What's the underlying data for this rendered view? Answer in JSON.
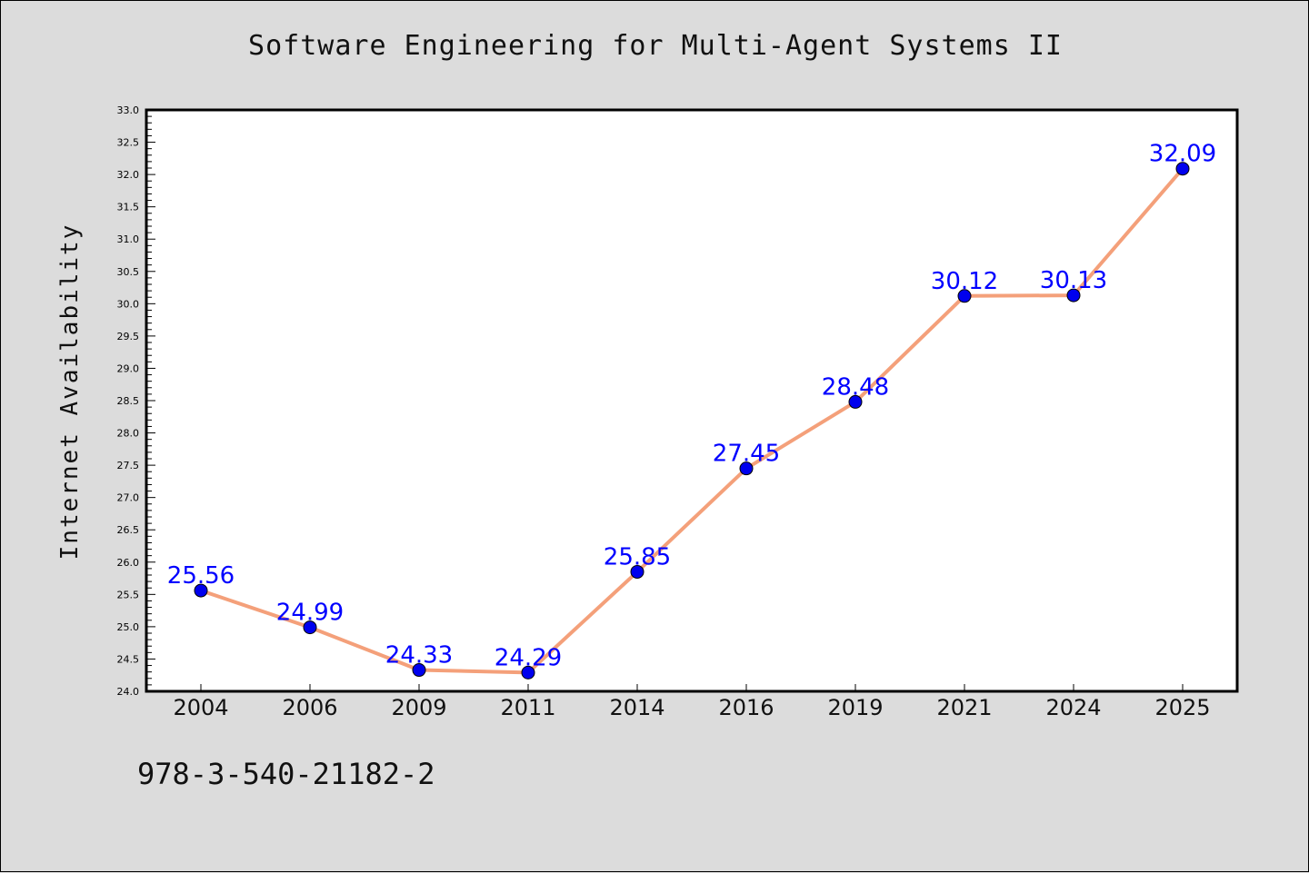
{
  "chart_data": {
    "type": "line",
    "title": "Software Engineering for Multi-Agent Systems II",
    "xlabel": "",
    "ylabel": "Internet Availability",
    "categories": [
      "2004",
      "2006",
      "2009",
      "2011",
      "2014",
      "2016",
      "2019",
      "2021",
      "2024",
      "2025"
    ],
    "values": [
      25.56,
      24.99,
      24.33,
      24.29,
      25.85,
      27.45,
      28.48,
      30.12,
      30.13,
      32.09
    ],
    "data_labels": [
      "25.56",
      "24.99",
      "24.33",
      "24.29",
      "25.85",
      "27.45",
      "28.48",
      "30.12",
      "30.13",
      "32.09"
    ],
    "ylim": [
      24.0,
      33.0
    ],
    "yticks": [
      "24.0",
      "24.5",
      "25.0",
      "25.5",
      "26.0",
      "26.5",
      "27.0",
      "27.5",
      "28.0",
      "28.5",
      "29.0",
      "29.5",
      "30.0",
      "30.5",
      "31.0",
      "31.5",
      "32.0",
      "32.5",
      "33.0"
    ],
    "grid": false,
    "line_color": "#f4a07a",
    "marker_color": "#0000ee",
    "label_color": "#0000ff"
  },
  "footer": {
    "text": "978-3-540-21182-2"
  }
}
